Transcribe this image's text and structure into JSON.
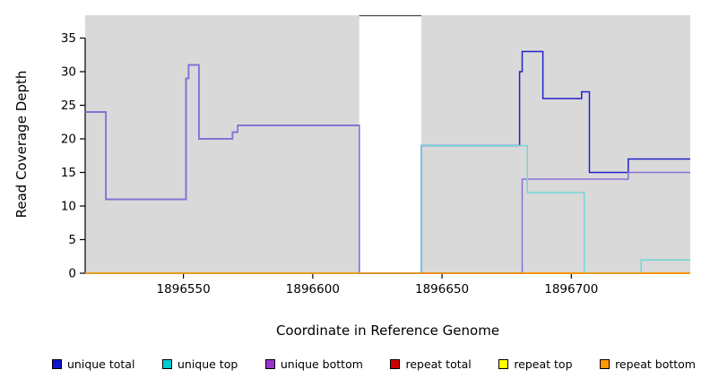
{
  "chart_data": {
    "type": "line",
    "step": true,
    "title": "",
    "xlabel": "Coordinate in Reference Genome",
    "ylabel": "Read Coverage Depth",
    "xlim": [
      1896512,
      1896746
    ],
    "ylim": [
      0,
      38.4
    ],
    "xticks": [
      1896550,
      1896600,
      1896650,
      1896700
    ],
    "yticks": [
      0,
      5,
      10,
      15,
      20,
      25,
      30,
      35
    ],
    "grid": false,
    "legend_position": "bottom",
    "shade_color": "#d9d9d9",
    "shaded_regions": [
      [
        1896512,
        1896618
      ],
      [
        1896642,
        1896746
      ]
    ],
    "gap_region": {
      "x0": 1896618,
      "x1": 1896642,
      "border_color": "#444444"
    },
    "series": [
      {
        "name": "repeat total",
        "color": "#cc0000",
        "points": [
          [
            1896512,
            0
          ]
        ]
      },
      {
        "name": "repeat top",
        "color": "#eeee00",
        "points": [
          [
            1896512,
            0
          ]
        ]
      },
      {
        "name": "unique total",
        "color": "#2222cc",
        "points": [
          [
            1896512,
            24
          ],
          [
            1896520,
            11
          ],
          [
            1896551,
            29
          ],
          [
            1896552,
            31
          ],
          [
            1896556,
            20
          ],
          [
            1896569,
            21
          ],
          [
            1896571,
            22
          ],
          [
            1896618,
            0
          ],
          [
            1896642,
            19
          ],
          [
            1896680,
            30
          ],
          [
            1896681,
            33
          ],
          [
            1896689,
            26
          ],
          [
            1896704,
            27
          ],
          [
            1896707,
            15
          ],
          [
            1896722,
            17
          ]
        ]
      },
      {
        "name": "unique bottom",
        "color": "#8a6fd4",
        "points": [
          [
            1896512,
            24
          ],
          [
            1896520,
            11
          ],
          [
            1896551,
            29
          ],
          [
            1896552,
            31
          ],
          [
            1896556,
            20
          ],
          [
            1896569,
            21
          ],
          [
            1896571,
            22
          ],
          [
            1896618,
            0
          ],
          [
            1896681,
            14
          ],
          [
            1896722,
            15
          ]
        ]
      },
      {
        "name": "unique top",
        "color": "#72d6d6",
        "points": [
          [
            1896512,
            0
          ],
          [
            1896642,
            19
          ],
          [
            1896683,
            12
          ],
          [
            1896705,
            0
          ],
          [
            1896727,
            2
          ]
        ]
      },
      {
        "name": "repeat bottom",
        "color": "#ff9200",
        "points": [
          [
            1896512,
            0
          ]
        ]
      }
    ],
    "legend_items": [
      {
        "label": "unique total",
        "color": "#1414cc"
      },
      {
        "label": "unique top",
        "color": "#00cccc"
      },
      {
        "label": "unique bottom",
        "color": "#9932cc"
      },
      {
        "label": "repeat total",
        "color": "#cc0000"
      },
      {
        "label": "repeat top",
        "color": "#ffff00"
      },
      {
        "label": "repeat bottom",
        "color": "#ff9900"
      }
    ],
    "axis_color": "#000000",
    "tick_label_color": "#000000"
  }
}
